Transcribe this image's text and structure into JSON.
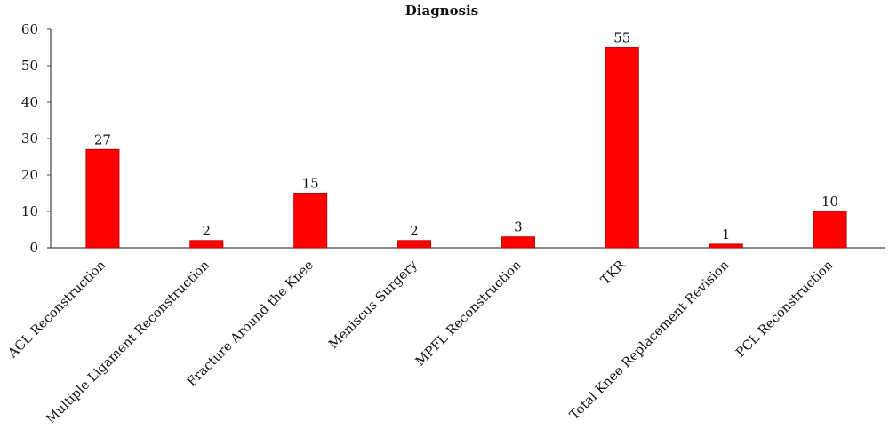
{
  "chart_data": {
    "type": "bar",
    "title": "Diagnosis",
    "xlabel": "",
    "ylabel": "",
    "categories": [
      "ACL Reconstruction",
      "Multiple Ligament Reconstruction",
      "Fracture Around the Knee",
      "Meniscus Surgery",
      "MPFL Reconstruction",
      "TKR",
      "Total Knee Replacement Revision",
      "PCL Reconstruction"
    ],
    "values": [
      27,
      2,
      15,
      2,
      3,
      55,
      1,
      10
    ],
    "ylim": [
      0,
      60
    ],
    "yticks": [
      0,
      10,
      20,
      30,
      40,
      50,
      60
    ],
    "grid": false,
    "legend": "none",
    "bar_color": "#ff0000",
    "bar_edge_color": "#c00000"
  }
}
